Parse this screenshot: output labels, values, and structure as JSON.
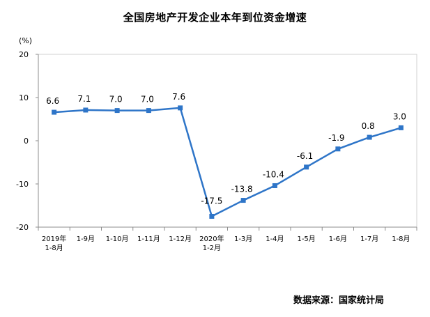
{
  "chart_data": {
    "type": "line",
    "title": "全国房地产开发企业本年到位资金增速",
    "ylabel": "(%)",
    "xlabel": "",
    "ylim": [
      -20,
      20
    ],
    "yticks": [
      20,
      10,
      0,
      -10,
      -20
    ],
    "grid": false,
    "legend": "none",
    "categories": [
      [
        "2019年",
        "1-8月"
      ],
      [
        "1-9月"
      ],
      [
        "1-10月"
      ],
      [
        "1-11月"
      ],
      [
        "1-12月"
      ],
      [
        "2020年",
        "1-2月"
      ],
      [
        "1-3月"
      ],
      [
        "1-4月"
      ],
      [
        "1-5月"
      ],
      [
        "1-6月"
      ],
      [
        "1-7月"
      ],
      [
        "1-8月"
      ]
    ],
    "series": [
      {
        "values": [
          6.6,
          7.1,
          7.0,
          7.0,
          7.6,
          -17.5,
          -13.8,
          -10.4,
          -6.1,
          -1.9,
          0.8,
          3.0
        ],
        "labels": [
          "6.6",
          "7.1",
          "7.0",
          "7.0",
          "7.6",
          "-17.5",
          "-13.8",
          "-10.4",
          "-6.1",
          "-1.9",
          "0.8",
          "3.0"
        ],
        "color": "#2e75c8"
      }
    ]
  },
  "footer": {
    "source": "数据来源：国家统计局"
  }
}
